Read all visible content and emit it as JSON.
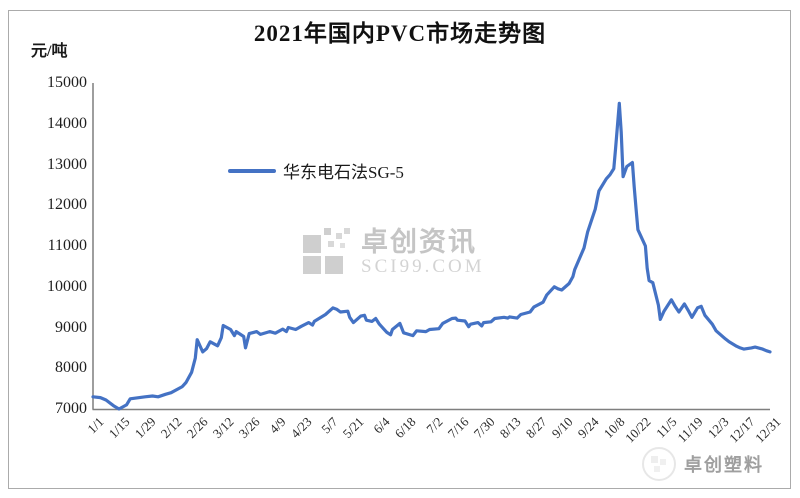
{
  "title": "2021年国内PVC市场走势图",
  "y_axis_unit": "元/吨",
  "legend": {
    "label": "华东电石法SG-5"
  },
  "watermark_center": {
    "name": "卓创资讯",
    "site": "SCI99.COM"
  },
  "watermark_corner": {
    "text": "卓创塑料"
  },
  "colors": {
    "series_line": "#4472c4",
    "axis": "#7f7f7f",
    "frame_border": "#ababab"
  },
  "chart_data": {
    "type": "line",
    "title": "2021年国内PVC市场走势图",
    "ylabel": "元/吨",
    "ylim": [
      7000,
      15000
    ],
    "y_ticks": [
      15000,
      14000,
      13000,
      12000,
      11000,
      10000,
      9000,
      8000,
      7000
    ],
    "x_ticks": [
      "1/1",
      "1/15",
      "1/29",
      "2/12",
      "2/26",
      "3/12",
      "3/26",
      "4/9",
      "4/23",
      "5/7",
      "5/21",
      "6/4",
      "6/18",
      "7/2",
      "7/16",
      "7/30",
      "8/13",
      "8/27",
      "9/10",
      "9/24",
      "10/8",
      "10/22",
      "11/5",
      "11/19",
      "12/3",
      "12/17",
      "12/31"
    ],
    "grid": false,
    "legend_position": "inside-upper-left",
    "series": [
      {
        "name": "华东电石法SG-5",
        "color": "#4472c4",
        "points": [
          [
            "1/1",
            7300
          ],
          [
            "1/5",
            7280
          ],
          [
            "1/8",
            7220
          ],
          [
            "1/12",
            7080
          ],
          [
            "1/15",
            7000
          ],
          [
            "1/19",
            7100
          ],
          [
            "1/21",
            7250
          ],
          [
            "1/26",
            7280
          ],
          [
            "1/29",
            7300
          ],
          [
            "2/2",
            7320
          ],
          [
            "2/5",
            7300
          ],
          [
            "2/9",
            7360
          ],
          [
            "2/12",
            7400
          ],
          [
            "2/18",
            7550
          ],
          [
            "2/20",
            7650
          ],
          [
            "2/23",
            7900
          ],
          [
            "2/25",
            8250
          ],
          [
            "2/26",
            8700
          ],
          [
            "3/1",
            8400
          ],
          [
            "3/3",
            8480
          ],
          [
            "3/5",
            8650
          ],
          [
            "3/9",
            8550
          ],
          [
            "3/11",
            8750
          ],
          [
            "3/12",
            9050
          ],
          [
            "3/16",
            8950
          ],
          [
            "3/18",
            8800
          ],
          [
            "3/19",
            8900
          ],
          [
            "3/23",
            8780
          ],
          [
            "3/24",
            8500
          ],
          [
            "3/26",
            8850
          ],
          [
            "3/30",
            8900
          ],
          [
            "4/1",
            8830
          ],
          [
            "4/6",
            8900
          ],
          [
            "4/9",
            8860
          ],
          [
            "4/13",
            8960
          ],
          [
            "4/15",
            8900
          ],
          [
            "4/16",
            9000
          ],
          [
            "4/20",
            8950
          ],
          [
            "4/23",
            9030
          ],
          [
            "4/27",
            9120
          ],
          [
            "4/29",
            9060
          ],
          [
            "4/30",
            9150
          ],
          [
            "5/6",
            9320
          ],
          [
            "5/10",
            9480
          ],
          [
            "5/12",
            9450
          ],
          [
            "5/14",
            9380
          ],
          [
            "5/18",
            9400
          ],
          [
            "5/19",
            9250
          ],
          [
            "5/21",
            9120
          ],
          [
            "5/25",
            9280
          ],
          [
            "5/27",
            9300
          ],
          [
            "5/28",
            9180
          ],
          [
            "5/31",
            9150
          ],
          [
            "6/2",
            9220
          ],
          [
            "6/4",
            9080
          ],
          [
            "6/8",
            8880
          ],
          [
            "6/10",
            8820
          ],
          [
            "6/11",
            8950
          ],
          [
            "6/15",
            9100
          ],
          [
            "6/17",
            8870
          ],
          [
            "6/22",
            8800
          ],
          [
            "6/24",
            8920
          ],
          [
            "6/29",
            8900
          ],
          [
            "7/1",
            8950
          ],
          [
            "7/6",
            8970
          ],
          [
            "7/8",
            9100
          ],
          [
            "7/13",
            9220
          ],
          [
            "7/15",
            9230
          ],
          [
            "7/16",
            9180
          ],
          [
            "7/20",
            9160
          ],
          [
            "7/22",
            9020
          ],
          [
            "7/23",
            9080
          ],
          [
            "7/27",
            9120
          ],
          [
            "7/29",
            9040
          ],
          [
            "7/30",
            9120
          ],
          [
            "8/3",
            9140
          ],
          [
            "8/5",
            9220
          ],
          [
            "8/10",
            9250
          ],
          [
            "8/12",
            9230
          ],
          [
            "8/13",
            9260
          ],
          [
            "8/17",
            9230
          ],
          [
            "8/19",
            9320
          ],
          [
            "8/24",
            9380
          ],
          [
            "8/26",
            9500
          ],
          [
            "8/31",
            9620
          ],
          [
            "9/2",
            9800
          ],
          [
            "9/6",
            10000
          ],
          [
            "9/8",
            9950
          ],
          [
            "9/10",
            9920
          ],
          [
            "9/14",
            10080
          ],
          [
            "9/16",
            10250
          ],
          [
            "9/17",
            10420
          ],
          [
            "9/22",
            10950
          ],
          [
            "9/24",
            11350
          ],
          [
            "9/28",
            11900
          ],
          [
            "9/30",
            12350
          ],
          [
            "10/4",
            12650
          ],
          [
            "10/6",
            12750
          ],
          [
            "10/8",
            12900
          ],
          [
            "10/9",
            13400
          ],
          [
            "10/11",
            14500
          ],
          [
            "10/12",
            13800
          ],
          [
            "10/13",
            12700
          ],
          [
            "10/15",
            12950
          ],
          [
            "10/18",
            13050
          ],
          [
            "10/19",
            12450
          ],
          [
            "10/20",
            11900
          ],
          [
            "10/21",
            11400
          ],
          [
            "10/22",
            11300
          ],
          [
            "10/25",
            11000
          ],
          [
            "10/26",
            10450
          ],
          [
            "10/27",
            10150
          ],
          [
            "10/29",
            10100
          ],
          [
            "11/1",
            9550
          ],
          [
            "11/2",
            9200
          ],
          [
            "11/4",
            9400
          ],
          [
            "11/8",
            9680
          ],
          [
            "11/10",
            9520
          ],
          [
            "11/12",
            9380
          ],
          [
            "11/15",
            9580
          ],
          [
            "11/17",
            9420
          ],
          [
            "11/19",
            9250
          ],
          [
            "11/22",
            9480
          ],
          [
            "11/24",
            9520
          ],
          [
            "11/26",
            9300
          ],
          [
            "11/30",
            9080
          ],
          [
            "12/2",
            8920
          ],
          [
            "12/7",
            8720
          ],
          [
            "12/9",
            8650
          ],
          [
            "12/13",
            8540
          ],
          [
            "12/15",
            8500
          ],
          [
            "12/17",
            8470
          ],
          [
            "12/21",
            8500
          ],
          [
            "12/23",
            8520
          ],
          [
            "12/27",
            8470
          ],
          [
            "12/29",
            8430
          ],
          [
            "12/31",
            8400
          ]
        ]
      }
    ]
  }
}
